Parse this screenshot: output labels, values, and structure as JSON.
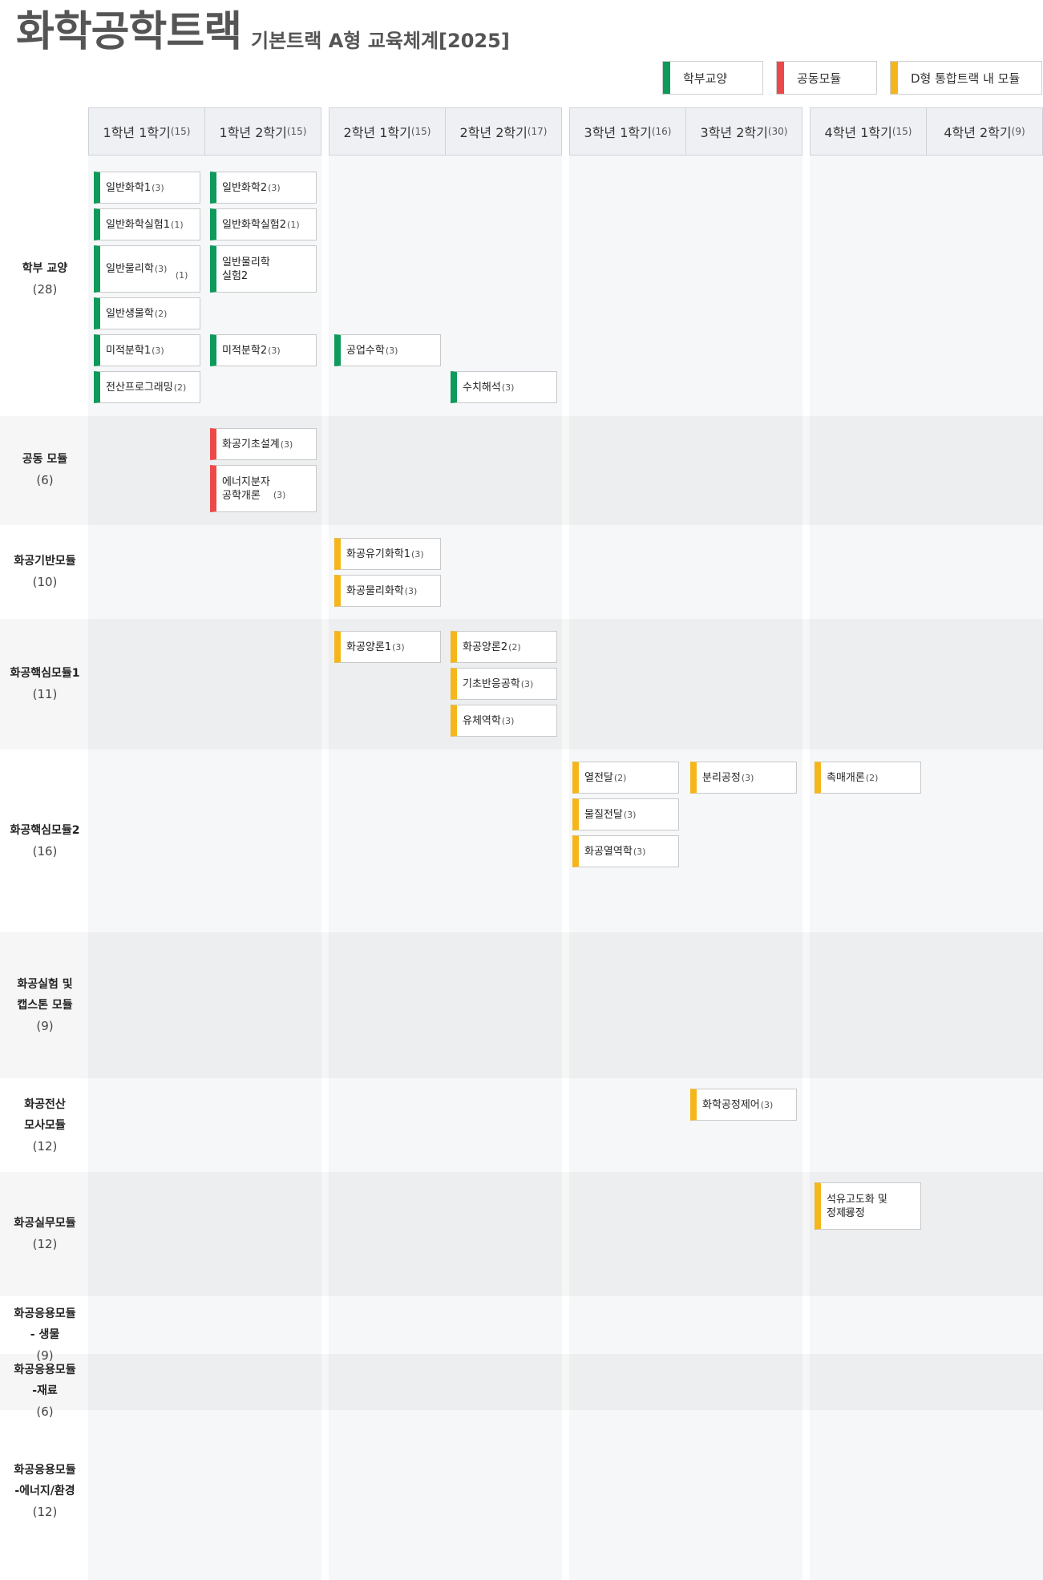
{
  "header": {
    "title": "화학공학트랙",
    "subtitle": "기본트랙 A형 교육체계[2025]"
  },
  "colors": {
    "liberal": "#0e9a5a",
    "common": "#ec4a4a",
    "module": "#f4b61a"
  },
  "legend": [
    {
      "label": "학부교양",
      "color": "#0e9a5a"
    },
    {
      "label": "공동모듈",
      "color": "#ec4a4a"
    },
    {
      "label": "D형 통합트랙 내 모듈",
      "color": "#f4b61a"
    }
  ],
  "semesters": [
    {
      "label": "1학년 1학기",
      "credits": "(15)"
    },
    {
      "label": "1학년 2학기",
      "credits": "(15)"
    },
    {
      "label": "2학년 1학기",
      "credits": "(15)"
    },
    {
      "label": "2학년 2학기",
      "credits": "(17)"
    },
    {
      "label": "3학년 1학기",
      "credits": "(16)"
    },
    {
      "label": "3학년 2학기",
      "credits": "(30)"
    },
    {
      "label": "4학년 1학기",
      "credits": "(15)"
    },
    {
      "label": "4학년 2학기",
      "credits": "(9)"
    }
  ],
  "rows": [
    {
      "name": "학부 교양",
      "credits": "(28)"
    },
    {
      "name": "공동 모듈",
      "credits": "(6)"
    },
    {
      "name": "화공기반모듈",
      "credits": "(10)"
    },
    {
      "name": "화공핵심모듈1",
      "credits": "(11)"
    },
    {
      "name": "화공핵심모듈2",
      "credits": "(16)"
    },
    {
      "name": "화공실험 및\n캡스톤 모듈",
      "credits": "(9)"
    },
    {
      "name": "화공전산\n모사모듈",
      "credits": "(12)"
    },
    {
      "name": "화공실무모듈",
      "credits": "(12)"
    },
    {
      "name": "화공응용모듈\n- 생물",
      "credits": "(9)"
    },
    {
      "name": "화공응용모듈\n-재료",
      "credits": "(6)"
    },
    {
      "name": "화공응용모듈\n-에너지/환경",
      "credits": "(12)"
    }
  ],
  "courses": [
    {
      "name": "일반화학1",
      "credits": "(3)",
      "type": "liberal",
      "semester": 1
    },
    {
      "name": "일반화학실험1",
      "credits": "(1)",
      "type": "liberal",
      "semester": 1
    },
    {
      "name": "일반물리학",
      "credits": "(3)",
      "type": "liberal",
      "semester": 1
    },
    {
      "name": "일반생물학",
      "credits": "(2)",
      "type": "liberal",
      "semester": 1
    },
    {
      "name": "미적분학1",
      "credits": "(3)",
      "type": "liberal",
      "semester": 1
    },
    {
      "name": "전산프로그래밍",
      "credits": "(2)",
      "type": "liberal",
      "semester": 1
    },
    {
      "name": "일반화학2",
      "credits": "(3)",
      "type": "liberal",
      "semester": 2
    },
    {
      "name": "일반화학실험2",
      "credits": "(1)",
      "type": "liberal",
      "semester": 2
    },
    {
      "name": "일반물리학\n실험2",
      "credits": "(1)",
      "type": "liberal",
      "semester": 2
    },
    {
      "name": "미적분학2",
      "credits": "(3)",
      "type": "liberal",
      "semester": 2
    },
    {
      "name": "공업수학",
      "credits": "(3)",
      "type": "liberal",
      "semester": 3
    },
    {
      "name": "수치해석",
      "credits": "(3)",
      "type": "liberal",
      "semester": 4
    },
    {
      "name": "화공기초설계",
      "credits": "(3)",
      "type": "common",
      "semester": 2
    },
    {
      "name": "에너지분자\n공학개론",
      "credits": "(3)",
      "type": "common",
      "semester": 2
    },
    {
      "name": "화공유기화학1",
      "credits": "(3)",
      "type": "module",
      "semester": 3
    },
    {
      "name": "화공물리화학",
      "credits": "(3)",
      "type": "module",
      "semester": 3
    },
    {
      "name": "화공양론1",
      "credits": "(3)",
      "type": "module",
      "semester": 3
    },
    {
      "name": "화공양론2",
      "credits": "(2)",
      "type": "module",
      "semester": 4
    },
    {
      "name": "기초반응공학",
      "credits": "(3)",
      "type": "module",
      "semester": 4
    },
    {
      "name": "유체역학",
      "credits": "(3)",
      "type": "module",
      "semester": 4
    },
    {
      "name": "열전달",
      "credits": "(2)",
      "type": "module",
      "semester": 5
    },
    {
      "name": "물질전달",
      "credits": "(3)",
      "type": "module",
      "semester": 5
    },
    {
      "name": "화공열역학",
      "credits": "(3)",
      "type": "module",
      "semester": 5
    },
    {
      "name": "분리공정",
      "credits": "(3)",
      "type": "module",
      "semester": 6
    },
    {
      "name": "촉매개론",
      "credits": "(2)",
      "type": "module",
      "semester": 7
    },
    {
      "name": "화학공정제어",
      "credits": "(3)",
      "type": "module",
      "semester": 6
    },
    {
      "name": "석유고도화 및\n정제공정",
      "credits": "(3)",
      "type": "module",
      "semester": 7
    }
  ]
}
